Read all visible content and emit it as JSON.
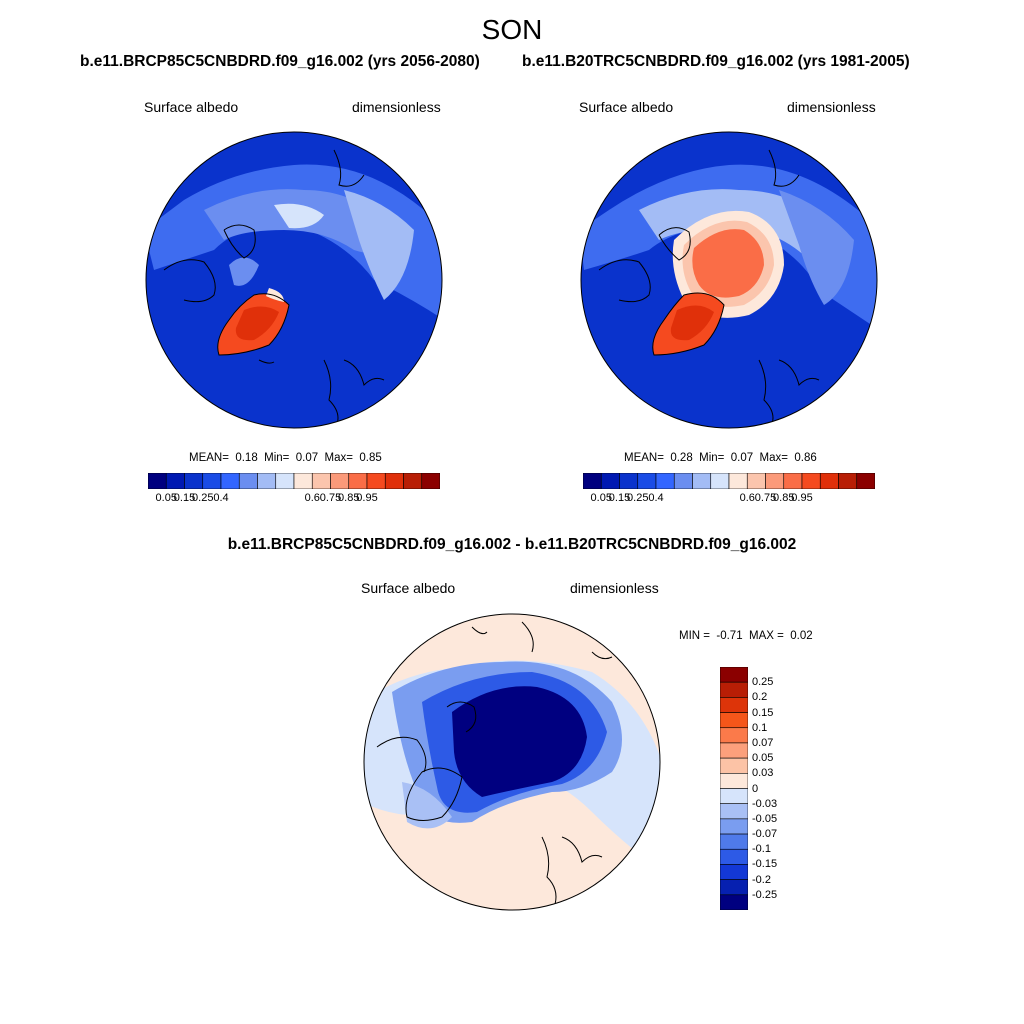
{
  "season": "SON",
  "panels": [
    {
      "run_title": "b.e11.BRCP85C5CNBDRD.f09_g16.002 (yrs 2056-2080)",
      "variable": "Surface albedo",
      "units": "dimensionless",
      "stats": {
        "mean_label": "MEAN=",
        "mean": "0.18",
        "min_label": "Min=",
        "min": "0.07",
        "max_label": "Max=",
        "max": "0.85"
      }
    },
    {
      "run_title": "b.e11.B20TRC5CNBDRD.f09_g16.002 (yrs 1981-2005)",
      "variable": "Surface albedo",
      "units": "dimensionless",
      "stats": {
        "mean_label": "MEAN=",
        "mean": "0.28",
        "min_label": "Min=",
        "min": "0.07",
        "max_label": "Max=",
        "max": "0.86"
      }
    }
  ],
  "abs_colorbar": {
    "colors": [
      "#00007f",
      "#0019b2",
      "#0a33cc",
      "#1a4ce6",
      "#3366ff",
      "#6b8ef0",
      "#a3bcf5",
      "#d6e4fb",
      "#fde8db",
      "#fbc5ad",
      "#fb9a7a",
      "#fa6d47",
      "#f54a1f",
      "#e0300a",
      "#b81e05",
      "#8b0000"
    ],
    "ticks": [
      "0.05",
      "0.15",
      "0.25",
      "0.4",
      "0.6",
      "0.75",
      "0.85",
      "0.95"
    ]
  },
  "diff": {
    "title": "b.e11.BRCP85C5CNBDRD.f09_g16.002 - b.e11.B20TRC5CNBDRD.f09_g16.002",
    "variable": "Surface albedo",
    "units": "dimensionless",
    "stats": {
      "min_label": "MIN =",
      "min": "-0.71",
      "max_label": "MAX =",
      "max": "0.02"
    }
  },
  "diff_colorbar": {
    "colors": [
      "#8b0000",
      "#b81e05",
      "#dd3409",
      "#f5561a",
      "#fb7a4a",
      "#fca07c",
      "#fcc3a6",
      "#fde8db",
      "#d6e4fb",
      "#a9c0f5",
      "#7a9df0",
      "#4f7aea",
      "#2d5ae6",
      "#1338d6",
      "#0620b0",
      "#000080"
    ],
    "ticks": [
      "0.25",
      "0.2",
      "0.15",
      "0.1",
      "0.07",
      "0.05",
      "0.03",
      "0",
      "-0.03",
      "-0.05",
      "-0.07",
      "-0.1",
      "-0.15",
      "-0.2",
      "-0.25"
    ]
  }
}
